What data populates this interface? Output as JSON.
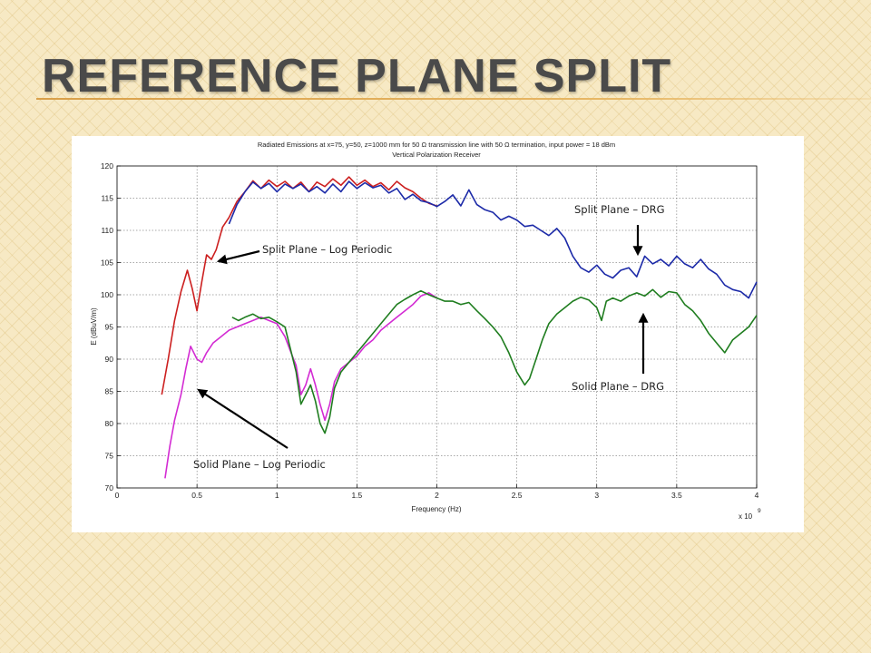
{
  "slide": {
    "title": "REFERENCE PLANE SPLIT"
  },
  "chart_data": {
    "type": "line",
    "title": "Radiated Emissions at x=75, y=50, z=1000 mm for 50 Ω transmission line with 50 Ω termination, input power = 18 dBm",
    "subtitle": "Vertical Polarization Receiver",
    "xlabel": "Frequency (Hz)",
    "ylabel": "E (dBuV/m)",
    "x_multiplier_label": "x 10",
    "x_multiplier_exponent": "9",
    "xlim": [
      0,
      4
    ],
    "ylim": [
      70,
      120
    ],
    "xticks": [
      "0",
      "0.5",
      "1",
      "1.5",
      "2",
      "2.5",
      "3",
      "3.5",
      "4"
    ],
    "yticks": [
      "70",
      "75",
      "80",
      "85",
      "90",
      "95",
      "100",
      "105",
      "110",
      "115",
      "120"
    ],
    "grid": true,
    "series": [
      {
        "color": "#cc1f1f",
        "label": "Split Plane – Log Periodic",
        "points": [
          [
            0.28,
            84.5
          ],
          [
            0.32,
            90
          ],
          [
            0.36,
            96
          ],
          [
            0.4,
            100.5
          ],
          [
            0.44,
            103.8
          ],
          [
            0.47,
            101
          ],
          [
            0.5,
            97.5
          ],
          [
            0.53,
            102
          ],
          [
            0.56,
            106.2
          ],
          [
            0.59,
            105.5
          ],
          [
            0.62,
            107
          ],
          [
            0.66,
            110.5
          ],
          [
            0.7,
            112
          ],
          [
            0.75,
            114.5
          ],
          [
            0.8,
            116
          ],
          [
            0.85,
            117.7
          ],
          [
            0.9,
            116.5
          ],
          [
            0.95,
            117.8
          ],
          [
            1.0,
            116.8
          ],
          [
            1.05,
            117.6
          ],
          [
            1.1,
            116.5
          ],
          [
            1.15,
            117.5
          ],
          [
            1.2,
            116
          ],
          [
            1.25,
            117.5
          ],
          [
            1.3,
            116.8
          ],
          [
            1.35,
            118
          ],
          [
            1.4,
            117
          ],
          [
            1.45,
            118.3
          ],
          [
            1.5,
            117
          ],
          [
            1.55,
            117.8
          ],
          [
            1.6,
            116.8
          ],
          [
            1.65,
            117.4
          ],
          [
            1.7,
            116.3
          ],
          [
            1.75,
            117.6
          ],
          [
            1.8,
            116.6
          ],
          [
            1.85,
            116
          ],
          [
            1.9,
            115
          ],
          [
            1.95,
            114.2
          ],
          [
            2.0,
            113.8
          ]
        ]
      },
      {
        "color": "#1c2aa8",
        "label": "Split Plane – DRG",
        "points": [
          [
            0.7,
            111
          ],
          [
            0.75,
            114
          ],
          [
            0.8,
            116
          ],
          [
            0.85,
            117.5
          ],
          [
            0.9,
            116.5
          ],
          [
            0.95,
            117.3
          ],
          [
            1.0,
            116
          ],
          [
            1.05,
            117.2
          ],
          [
            1.1,
            116.5
          ],
          [
            1.15,
            117.2
          ],
          [
            1.2,
            116
          ],
          [
            1.25,
            116.8
          ],
          [
            1.3,
            115.8
          ],
          [
            1.35,
            117.2
          ],
          [
            1.4,
            116
          ],
          [
            1.45,
            117.6
          ],
          [
            1.5,
            116.5
          ],
          [
            1.55,
            117.4
          ],
          [
            1.6,
            116.6
          ],
          [
            1.65,
            117
          ],
          [
            1.7,
            115.8
          ],
          [
            1.75,
            116.5
          ],
          [
            1.8,
            114.8
          ],
          [
            1.85,
            115.6
          ],
          [
            1.9,
            114.6
          ],
          [
            1.95,
            114.3
          ],
          [
            2.0,
            113.7
          ],
          [
            2.05,
            114.5
          ],
          [
            2.1,
            115.5
          ],
          [
            2.15,
            113.8
          ],
          [
            2.2,
            116.3
          ],
          [
            2.25,
            114
          ],
          [
            2.3,
            113.2
          ],
          [
            2.35,
            112.8
          ],
          [
            2.4,
            111.6
          ],
          [
            2.45,
            112.2
          ],
          [
            2.5,
            111.6
          ],
          [
            2.55,
            110.6
          ],
          [
            2.6,
            110.8
          ],
          [
            2.65,
            110
          ],
          [
            2.7,
            109.2
          ],
          [
            2.75,
            110.3
          ],
          [
            2.8,
            108.8
          ],
          [
            2.85,
            106
          ],
          [
            2.9,
            104.2
          ],
          [
            2.95,
            103.5
          ],
          [
            3.0,
            104.6
          ],
          [
            3.05,
            103.2
          ],
          [
            3.1,
            102.6
          ],
          [
            3.15,
            103.8
          ],
          [
            3.2,
            104.2
          ],
          [
            3.25,
            102.8
          ],
          [
            3.3,
            106
          ],
          [
            3.35,
            104.8
          ],
          [
            3.4,
            105.5
          ],
          [
            3.45,
            104.5
          ],
          [
            3.5,
            106
          ],
          [
            3.55,
            104.8
          ],
          [
            3.6,
            104.2
          ],
          [
            3.65,
            105.5
          ],
          [
            3.7,
            104
          ],
          [
            3.75,
            103.2
          ],
          [
            3.8,
            101.5
          ],
          [
            3.85,
            100.8
          ],
          [
            3.9,
            100.5
          ],
          [
            3.95,
            99.5
          ],
          [
            4.0,
            102
          ]
        ]
      },
      {
        "color": "#d32bd3",
        "label": "Solid Plane – Log Periodic",
        "points": [
          [
            0.3,
            71.5
          ],
          [
            0.33,
            76.5
          ],
          [
            0.36,
            80.5
          ],
          [
            0.4,
            84.5
          ],
          [
            0.43,
            88.5
          ],
          [
            0.46,
            92
          ],
          [
            0.5,
            90
          ],
          [
            0.53,
            89.5
          ],
          [
            0.56,
            91
          ],
          [
            0.6,
            92.5
          ],
          [
            0.65,
            93.5
          ],
          [
            0.7,
            94.5
          ],
          [
            0.75,
            95
          ],
          [
            0.8,
            95.5
          ],
          [
            0.85,
            96
          ],
          [
            0.9,
            96.5
          ],
          [
            0.95,
            96
          ],
          [
            1.0,
            95.5
          ],
          [
            1.05,
            93.5
          ],
          [
            1.08,
            91.5
          ],
          [
            1.12,
            89
          ],
          [
            1.15,
            84.5
          ],
          [
            1.18,
            86
          ],
          [
            1.21,
            88.5
          ],
          [
            1.24,
            86
          ],
          [
            1.27,
            83
          ],
          [
            1.3,
            80.5
          ],
          [
            1.33,
            83
          ],
          [
            1.36,
            86.5
          ],
          [
            1.4,
            88.5
          ],
          [
            1.45,
            89.5
          ],
          [
            1.5,
            90.5
          ],
          [
            1.55,
            92
          ],
          [
            1.6,
            93
          ],
          [
            1.65,
            94.5
          ],
          [
            1.7,
            95.5
          ],
          [
            1.75,
            96.5
          ],
          [
            1.8,
            97.5
          ],
          [
            1.85,
            98.5
          ],
          [
            1.9,
            99.8
          ],
          [
            1.95,
            100.3
          ],
          [
            2.0,
            99.5
          ]
        ]
      },
      {
        "color": "#1f7d1f",
        "label": "Solid Plane – DRG",
        "points": [
          [
            0.72,
            96.5
          ],
          [
            0.76,
            96
          ],
          [
            0.8,
            96.5
          ],
          [
            0.85,
            97
          ],
          [
            0.9,
            96.3
          ],
          [
            0.95,
            96.5
          ],
          [
            1.0,
            95.8
          ],
          [
            1.05,
            95
          ],
          [
            1.08,
            92
          ],
          [
            1.12,
            88
          ],
          [
            1.15,
            83
          ],
          [
            1.18,
            84.5
          ],
          [
            1.21,
            86
          ],
          [
            1.24,
            83.5
          ],
          [
            1.27,
            80
          ],
          [
            1.3,
            78.5
          ],
          [
            1.33,
            81
          ],
          [
            1.36,
            85.5
          ],
          [
            1.4,
            88
          ],
          [
            1.45,
            89.5
          ],
          [
            1.5,
            91
          ],
          [
            1.55,
            92.5
          ],
          [
            1.6,
            94
          ],
          [
            1.65,
            95.5
          ],
          [
            1.7,
            97
          ],
          [
            1.75,
            98.5
          ],
          [
            1.8,
            99.3
          ],
          [
            1.85,
            100
          ],
          [
            1.9,
            100.6
          ],
          [
            1.95,
            100
          ],
          [
            2.0,
            99.5
          ],
          [
            2.05,
            99
          ],
          [
            2.1,
            99
          ],
          [
            2.15,
            98.5
          ],
          [
            2.2,
            98.8
          ],
          [
            2.25,
            97.5
          ],
          [
            2.3,
            96.3
          ],
          [
            2.35,
            95
          ],
          [
            2.4,
            93.5
          ],
          [
            2.45,
            91
          ],
          [
            2.5,
            88
          ],
          [
            2.55,
            86
          ],
          [
            2.58,
            87
          ],
          [
            2.62,
            90
          ],
          [
            2.66,
            93
          ],
          [
            2.7,
            95.5
          ],
          [
            2.75,
            97
          ],
          [
            2.8,
            98
          ],
          [
            2.85,
            99
          ],
          [
            2.9,
            99.6
          ],
          [
            2.95,
            99.2
          ],
          [
            3.0,
            98
          ],
          [
            3.03,
            96
          ],
          [
            3.06,
            99
          ],
          [
            3.1,
            99.5
          ],
          [
            3.15,
            99
          ],
          [
            3.2,
            99.8
          ],
          [
            3.25,
            100.3
          ],
          [
            3.3,
            99.8
          ],
          [
            3.35,
            100.8
          ],
          [
            3.4,
            99.6
          ],
          [
            3.45,
            100.5
          ],
          [
            3.5,
            100.3
          ],
          [
            3.55,
            98.5
          ],
          [
            3.6,
            97.5
          ],
          [
            3.65,
            96
          ],
          [
            3.7,
            94
          ],
          [
            3.75,
            92.5
          ],
          [
            3.8,
            91
          ],
          [
            3.85,
            93
          ],
          [
            3.9,
            94
          ],
          [
            3.95,
            95
          ],
          [
            4.0,
            96.8
          ]
        ]
      }
    ],
    "annotations": [
      {
        "name": "split-log",
        "text": "Split Plane – Log Periodic",
        "target": [
          0.57,
          106
        ]
      },
      {
        "name": "split-drg",
        "text": "Split Plane – DRG",
        "target": [
          3.27,
          106.5
        ]
      },
      {
        "name": "solid-drg",
        "text": "Solid Plane – DRG",
        "target": [
          3.29,
          101
        ]
      },
      {
        "name": "solid-log",
        "text": "Solid Plane – Log Periodic",
        "target": [
          0.5,
          86.5
        ]
      }
    ]
  }
}
